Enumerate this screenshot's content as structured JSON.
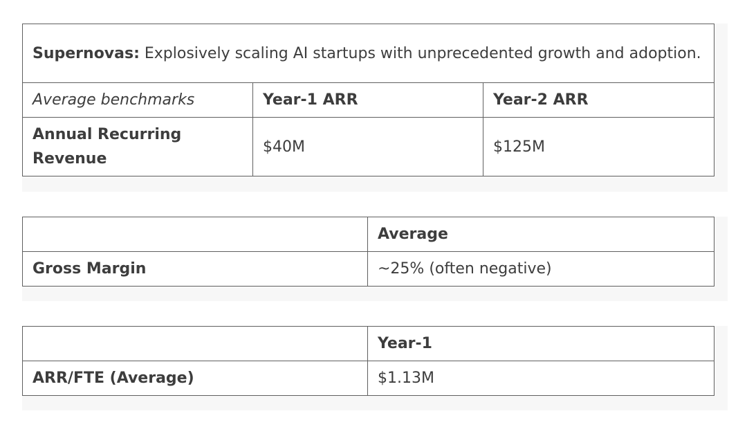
{
  "table1": {
    "title_bold": "Supernovas:",
    "title_rest": " Explosively scaling AI startups with unprecedented growth and adoption.",
    "headers": [
      "Average benchmarks",
      "Year-1 ARR",
      "Year-2 ARR"
    ],
    "row": {
      "label": "Annual Recurring Revenue",
      "values": [
        "$40M",
        "$125M"
      ]
    }
  },
  "table2": {
    "headers": [
      "",
      "Average"
    ],
    "row": {
      "label": "Gross Margin",
      "value": "~25% (often negative)"
    }
  },
  "table3": {
    "headers": [
      "",
      "Year-1"
    ],
    "row": {
      "label": "ARR/FTE (Average)",
      "value": "$1.13M"
    }
  }
}
